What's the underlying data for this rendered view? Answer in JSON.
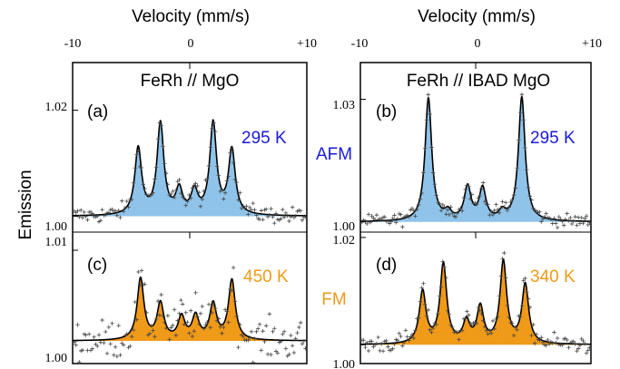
{
  "figure": {
    "ylabel": "Emission",
    "xlabel_top": "Velocity (mm/s)",
    "x_ticks": [
      "-10",
      "0",
      "+10"
    ],
    "center_labels": [
      "AFM",
      "FM"
    ],
    "colors": {
      "afm_fill": "#8fc3ea",
      "fm_fill": "#f09a19",
      "temperature": "#f09a19",
      "afm_text": "#1a1adb",
      "axes": "#000000",
      "fit": "#000000"
    }
  },
  "chart_data": [
    {
      "type": "scatter",
      "panel": "(a)",
      "sample": "FeRh // MgO",
      "temperature": "295 K",
      "temperature_color": "#1a1adb",
      "phase": "AFM",
      "xlim": [
        -10,
        10
      ],
      "ylim": [
        0.997,
        1.029
      ],
      "y_tick_labels": [
        {
          "value": 1.0,
          "label": "1.00"
        },
        {
          "value": 1.02,
          "label": "1.02"
        }
      ],
      "fill_color": "#8fc3ea",
      "lines": [
        {
          "position": -4.4,
          "height": 0.0126
        },
        {
          "position": -2.5,
          "height": 0.0172
        },
        {
          "position": -0.9,
          "height": 0.0046
        },
        {
          "position": 0.4,
          "height": 0.0043
        },
        {
          "position": 2.0,
          "height": 0.0172
        },
        {
          "position": 3.6,
          "height": 0.0122
        }
      ],
      "linewidth": 0.35,
      "noise": 0.0008
    },
    {
      "type": "scatter",
      "panel": "(b)",
      "sample": "FeRh // IBAD MgO",
      "temperature": "295 K",
      "temperature_color": "#1a1adb",
      "phase": "AFM",
      "xlim": [
        -10,
        10
      ],
      "ylim": [
        0.9975,
        1.039
      ],
      "y_tick_labels": [
        {
          "value": 1.0,
          "label": "1.00"
        },
        {
          "value": 1.03,
          "label": "1.03"
        }
      ],
      "fill_color": "#8fc3ea",
      "lines": [
        {
          "position": -4.1,
          "height": 0.0301
        },
        {
          "position": -2.4,
          "height": 0.002
        },
        {
          "position": -0.7,
          "height": 0.0082
        },
        {
          "position": 0.6,
          "height": 0.0078
        },
        {
          "position": 2.3,
          "height": 0.002
        },
        {
          "position": 4.0,
          "height": 0.0304
        }
      ],
      "linewidth": 0.35,
      "noise": 0.0008
    },
    {
      "type": "scatter",
      "panel": "(c)",
      "sample": "",
      "temperature": "450 K",
      "temperature_color": "#f09a19",
      "phase": "FM",
      "xlim": [
        -10,
        10
      ],
      "ylim": [
        0.9975,
        1.012
      ],
      "y_tick_labels": [
        {
          "value": 1.0,
          "label": "1.00"
        },
        {
          "value": 1.01,
          "label": "1.01"
        }
      ],
      "fill_color": "#f09a19",
      "lines": [
        {
          "position": -4.2,
          "height": 0.0068
        },
        {
          "position": -2.5,
          "height": 0.004
        },
        {
          "position": -0.7,
          "height": 0.0025
        },
        {
          "position": 0.5,
          "height": 0.0026
        },
        {
          "position": 2.0,
          "height": 0.0039
        },
        {
          "position": 3.6,
          "height": 0.0066
        }
      ],
      "linewidth": 0.35,
      "noise": 0.0011
    },
    {
      "type": "scatter",
      "panel": "(d)",
      "sample": "",
      "temperature": "340 K",
      "temperature_color": "#f09a19",
      "phase": "FM",
      "xlim": [
        -10,
        10
      ],
      "ylim": [
        0.9965,
        1.021
      ],
      "y_tick_labels": [
        {
          "value": 1.0,
          "label": "1.00"
        },
        {
          "value": 1.02,
          "label": "1.02"
        }
      ],
      "fill_color": "#f09a19",
      "lines": [
        {
          "position": -4.6,
          "height": 0.0097
        },
        {
          "position": -2.8,
          "height": 0.0148
        },
        {
          "position": -0.8,
          "height": 0.004
        },
        {
          "position": 0.4,
          "height": 0.0067
        },
        {
          "position": 2.4,
          "height": 0.0152
        },
        {
          "position": 4.3,
          "height": 0.011
        }
      ],
      "linewidth": 0.35,
      "noise": 0.0009
    }
  ]
}
